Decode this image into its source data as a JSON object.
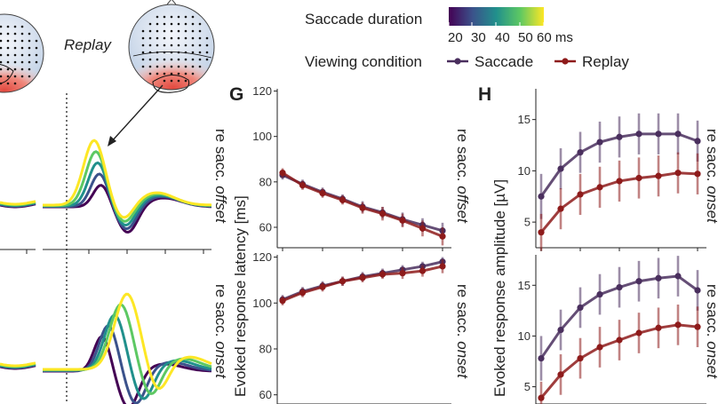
{
  "legend": {
    "duration_title": "Saccade duration",
    "duration_ticks": [
      "20",
      "30",
      "40",
      "50",
      "60 ms"
    ],
    "condition_title": "Viewing condition",
    "conditions": [
      "Saccade",
      "Replay"
    ]
  },
  "topo_label": "Replay",
  "panel_labels": {
    "g": "G",
    "h": "H"
  },
  "strip_labels": {
    "top_prefix": "re sacc.",
    "top_italic": "offset",
    "bottom_prefix": "re sacc.",
    "bottom_italic": "onset"
  },
  "colors": {
    "saccade": "#4a2f5e",
    "replay": "#8e1b1b",
    "viridis": [
      "#440154",
      "#3b528b",
      "#21908c",
      "#5dc863",
      "#fde725"
    ]
  },
  "chart_data": [
    {
      "type": "line",
      "panel": "G-top",
      "ylabel": "Evoked response latency [ms]",
      "ylim": [
        51,
        121
      ],
      "yticks": [
        60,
        80,
        100,
        120
      ],
      "x": [
        20,
        25,
        30,
        35,
        40,
        45,
        50,
        55,
        60
      ],
      "series": [
        {
          "name": "Saccade",
          "values": [
            83,
            79,
            75.5,
            72.5,
            69,
            66.5,
            63.5,
            61,
            58.5
          ],
          "err": [
            2,
            2,
            2,
            2,
            2.5,
            2.5,
            3,
            3,
            3.5
          ]
        },
        {
          "name": "Replay",
          "values": [
            84,
            78.5,
            75,
            72,
            68.5,
            66,
            63,
            59.5,
            56
          ],
          "err": [
            2,
            2,
            2,
            2,
            2.5,
            3,
            3,
            3.5,
            4
          ]
        }
      ]
    },
    {
      "type": "line",
      "panel": "G-bottom",
      "ylim": [
        56,
        121
      ],
      "yticks": [
        60,
        80,
        100,
        120
      ],
      "x": [
        20,
        25,
        30,
        35,
        40,
        45,
        50,
        55,
        60
      ],
      "series": [
        {
          "name": "Saccade",
          "values": [
            101.5,
            105,
            107.5,
            109.5,
            111.5,
            113,
            114.5,
            116,
            118
          ],
          "err": [
            2,
            2,
            2,
            2,
            2,
            2,
            2,
            2,
            2
          ]
        },
        {
          "name": "Replay",
          "values": [
            101,
            104.5,
            107,
            109.5,
            111,
            112.5,
            113,
            114,
            116
          ],
          "err": [
            2,
            2,
            2,
            2,
            2,
            2,
            2.5,
            2.5,
            3
          ]
        }
      ]
    },
    {
      "type": "line",
      "panel": "H-top",
      "ylabel": "Evoked response amplitude [µV]",
      "ylim": [
        2.5,
        18
      ],
      "yticks": [
        5,
        10,
        15
      ],
      "x": [
        20,
        25,
        30,
        35,
        40,
        45,
        50,
        55,
        60
      ],
      "series": [
        {
          "name": "Saccade",
          "values": [
            7.5,
            10.2,
            11.8,
            12.8,
            13.3,
            13.6,
            13.6,
            13.6,
            12.9
          ],
          "err": [
            2.2,
            2,
            2,
            2,
            2,
            2,
            2,
            2,
            2
          ]
        },
        {
          "name": "Replay",
          "values": [
            4,
            6.3,
            7.7,
            8.4,
            9,
            9.3,
            9.5,
            9.8,
            9.7
          ],
          "err": [
            1.8,
            2,
            2,
            2,
            2,
            2,
            2,
            2,
            2
          ]
        }
      ]
    },
    {
      "type": "line",
      "panel": "H-bottom",
      "ylim": [
        3.3,
        18
      ],
      "yticks": [
        5,
        10,
        15
      ],
      "x": [
        20,
        25,
        30,
        35,
        40,
        45,
        50,
        55,
        60
      ],
      "series": [
        {
          "name": "Saccade",
          "values": [
            7.8,
            10.6,
            12.8,
            14.1,
            14.8,
            15.4,
            15.7,
            15.9,
            14.5
          ],
          "err": [
            2.2,
            2,
            2,
            2,
            2,
            2,
            2,
            2,
            2
          ]
        },
        {
          "name": "Replay",
          "values": [
            3.9,
            6.2,
            7.8,
            8.9,
            9.6,
            10.3,
            10.8,
            11.1,
            10.9
          ],
          "err": [
            1.6,
            2,
            2,
            2,
            2,
            2,
            2,
            2,
            2
          ]
        }
      ]
    },
    {
      "type": "line",
      "panel": "F-waveforms",
      "durations_ms": [
        20,
        30,
        40,
        50,
        60
      ]
    }
  ]
}
